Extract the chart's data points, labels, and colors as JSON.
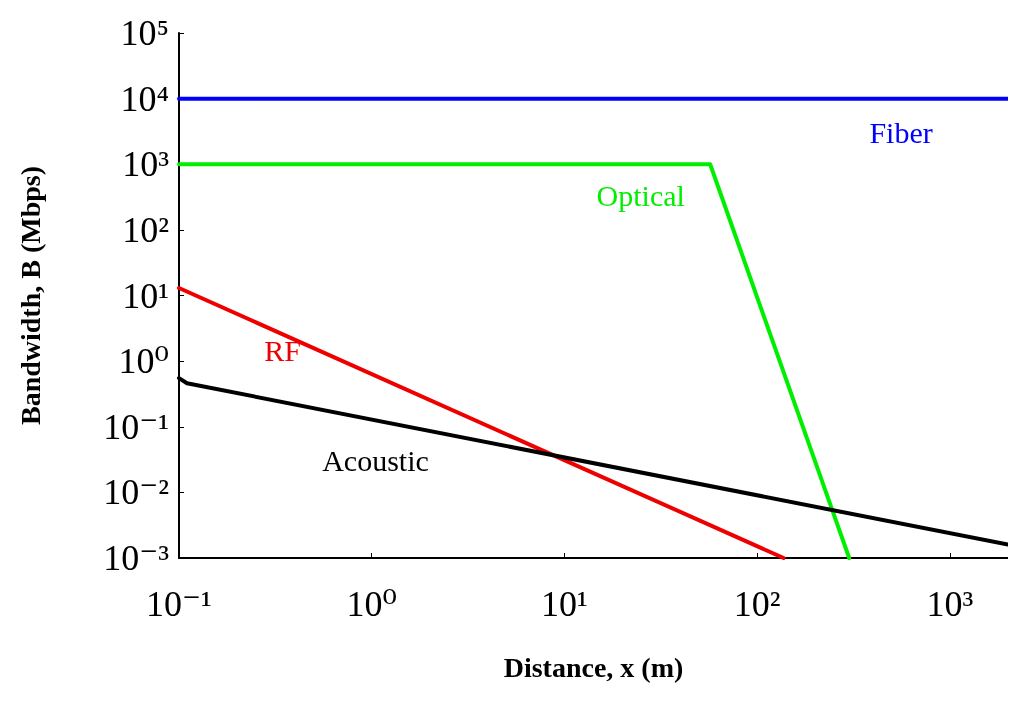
{
  "chart_data": {
    "type": "line",
    "xlabel": "Distance, x (m)",
    "ylabel": "Bandwidth, B (Mbps)",
    "log": "xy",
    "marker": "none",
    "line_style": "solid",
    "grid": false,
    "xlim": [
      0.1,
      2000
    ],
    "ylim": [
      0.001,
      100000
    ],
    "xticks": [
      {
        "value": 0.1,
        "label": "10⁻¹"
      },
      {
        "value": 1,
        "label": "10⁰"
      },
      {
        "value": 10,
        "label": "10¹"
      },
      {
        "value": 100,
        "label": "10²"
      },
      {
        "value": 1000,
        "label": "10³"
      }
    ],
    "yticks": [
      {
        "value": 0.001,
        "label": "10⁻³"
      },
      {
        "value": 0.01,
        "label": "10⁻²"
      },
      {
        "value": 0.1,
        "label": "10⁻¹"
      },
      {
        "value": 1,
        "label": "10⁰"
      },
      {
        "value": 10,
        "label": "10¹"
      },
      {
        "value": 100,
        "label": "10²"
      },
      {
        "value": 1000,
        "label": "10³"
      },
      {
        "value": 10000,
        "label": "10⁴"
      },
      {
        "value": 100000,
        "label": "10⁵"
      }
    ],
    "series": [
      {
        "name": "Fiber",
        "color": "#0000ff",
        "x": [
          0.1,
          2000
        ],
        "values": [
          10000,
          10000
        ]
      },
      {
        "name": "Optical",
        "color": "#00ee00",
        "x": [
          0.1,
          57,
          300
        ],
        "values": [
          1000,
          1000,
          0.001
        ]
      },
      {
        "name": "RF",
        "color": "#ee0000",
        "x": [
          0.1,
          137
        ],
        "values": [
          13,
          0.001
        ]
      },
      {
        "name": "Acoustic",
        "color": "#000000",
        "x": [
          0.1,
          0.11,
          2000
        ],
        "values": [
          0.55,
          0.46,
          0.0016
        ]
      }
    ]
  }
}
